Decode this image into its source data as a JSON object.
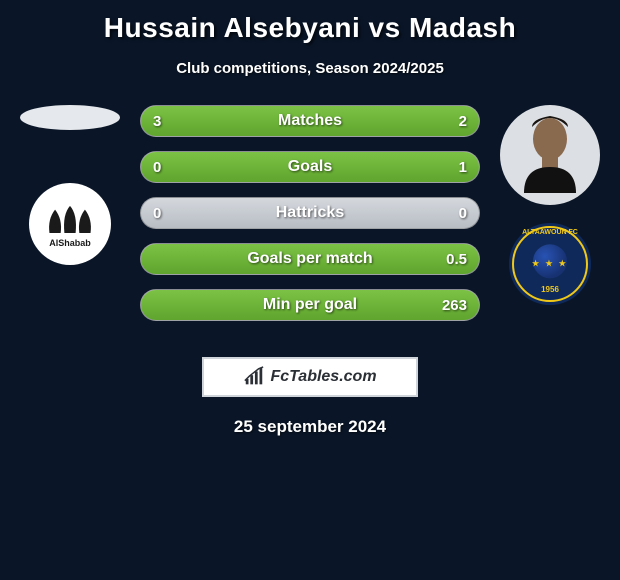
{
  "title": "Hussain Alsebyani vs Madash",
  "subtitle": "Club competitions, Season 2024/2025",
  "date": "25 september 2024",
  "badge_text": "FcTables.com",
  "colors": {
    "bg": "#0a1628",
    "bar_bg": "#c2c7ce",
    "bar_fill": "#6ab538",
    "text": "#ffffff"
  },
  "left": {
    "player_name": "Hussain Alsebyani",
    "club_name": "Al Shabab",
    "club_text": "AlShabab"
  },
  "right": {
    "player_name": "Madash",
    "club_name": "Al Taawoun",
    "club_text_top": "ALTAAWOUN FC",
    "club_year": "1956"
  },
  "stats": [
    {
      "label": "Matches",
      "left_val": "3",
      "right_val": "2",
      "left_pct": 60,
      "right_pct": 40
    },
    {
      "label": "Goals",
      "left_val": "0",
      "right_val": "1",
      "left_pct": 0,
      "right_pct": 100
    },
    {
      "label": "Hattricks",
      "left_val": "0",
      "right_val": "0",
      "left_pct": 0,
      "right_pct": 0
    },
    {
      "label": "Goals per match",
      "left_val": "",
      "right_val": "0.5",
      "left_pct": 0,
      "right_pct": 100
    },
    {
      "label": "Min per goal",
      "left_val": "",
      "right_val": "263",
      "left_pct": 0,
      "right_pct": 100
    }
  ]
}
